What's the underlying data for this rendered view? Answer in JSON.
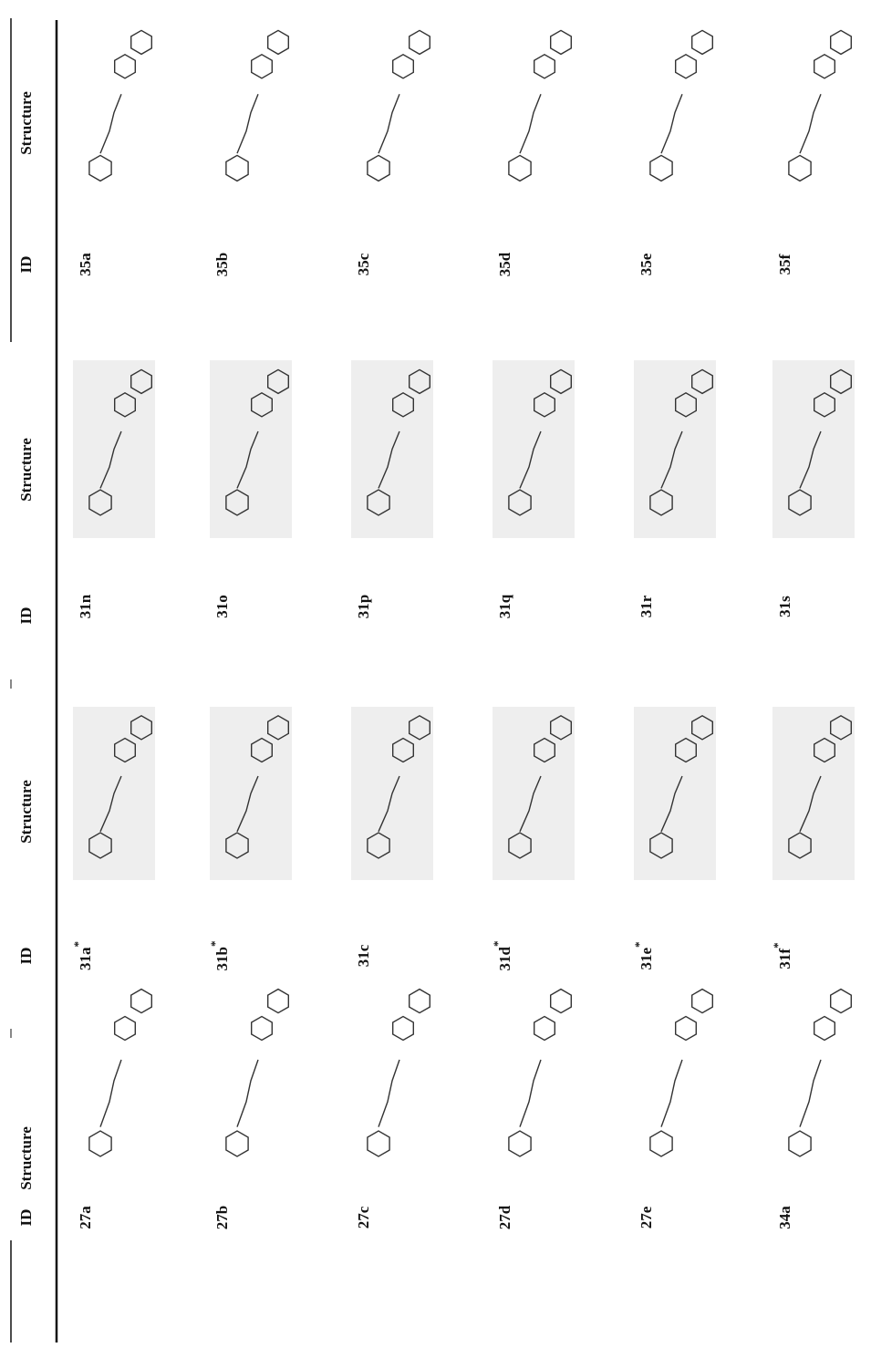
{
  "table": {
    "header": [
      "ID",
      "Structure",
      "ID",
      "Structure",
      "ID",
      "Structure",
      "ID",
      "Structure"
    ],
    "rows": [
      [
        {
          "id": "27a"
        },
        {
          "id": "31a",
          "note": "*"
        },
        {
          "id": "31n"
        },
        {
          "id": "35a"
        }
      ],
      [
        {
          "id": "27b"
        },
        {
          "id": "31b",
          "note": "*"
        },
        {
          "id": "31o"
        },
        {
          "id": "35b"
        }
      ],
      [
        {
          "id": "27c"
        },
        {
          "id": "31c"
        },
        {
          "id": "31p"
        },
        {
          "id": "35c"
        }
      ],
      [
        {
          "id": "27d"
        },
        {
          "id": "31d",
          "note": "*"
        },
        {
          "id": "31q"
        },
        {
          "id": "35d"
        }
      ],
      [
        {
          "id": "27e"
        },
        {
          "id": "31e",
          "note": "*"
        },
        {
          "id": "31r"
        },
        {
          "id": "35e"
        }
      ],
      [
        {
          "id": "34a"
        },
        {
          "id": "31f",
          "note": "*"
        },
        {
          "id": "31s"
        },
        {
          "id": "35f"
        }
      ]
    ]
  }
}
